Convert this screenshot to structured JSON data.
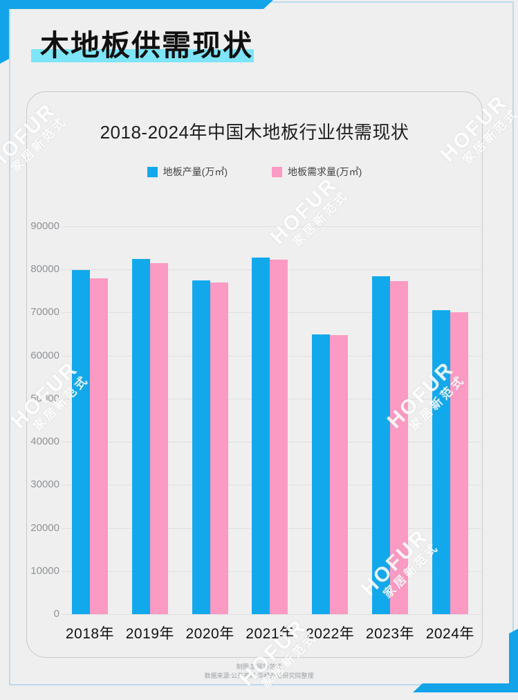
{
  "page": {
    "header_title": "木地板供需现状",
    "footer_line1": "制图:家居新范式",
    "footer_line2": "数据来源:公开资料,华经产业研究院整理"
  },
  "watermark": {
    "brand": "HOFUR",
    "sub": "家居新范式"
  },
  "colors": {
    "bar_blue": "#12a9ec",
    "bar_pink": "#fb9ac3",
    "highlight_cyan": "#7ee4f8",
    "frame_light_blue": "#bcdaee",
    "corner_blue": "#12a3e9",
    "background": "#efefef"
  },
  "chart_data": {
    "type": "bar",
    "title": "2018-2024年中国木地板行业供需现状",
    "categories": [
      "2018年",
      "2019年",
      "2020年",
      "2021年",
      "2022年",
      "2023年",
      "2024年"
    ],
    "series": [
      {
        "name": "地板产量(万㎡)",
        "color": "#12a9ec",
        "values": [
          79900,
          82500,
          77500,
          82800,
          65000,
          78400,
          70500
        ]
      },
      {
        "name": "地板需求量(万㎡)",
        "color": "#fb9ac3",
        "values": [
          78000,
          81500,
          77000,
          82300,
          64700,
          77300,
          70100
        ]
      }
    ],
    "ylim": [
      0,
      90000
    ],
    "ytick_step": 10000,
    "grid": true,
    "legend_position": "top",
    "xlabel": "",
    "ylabel": ""
  }
}
